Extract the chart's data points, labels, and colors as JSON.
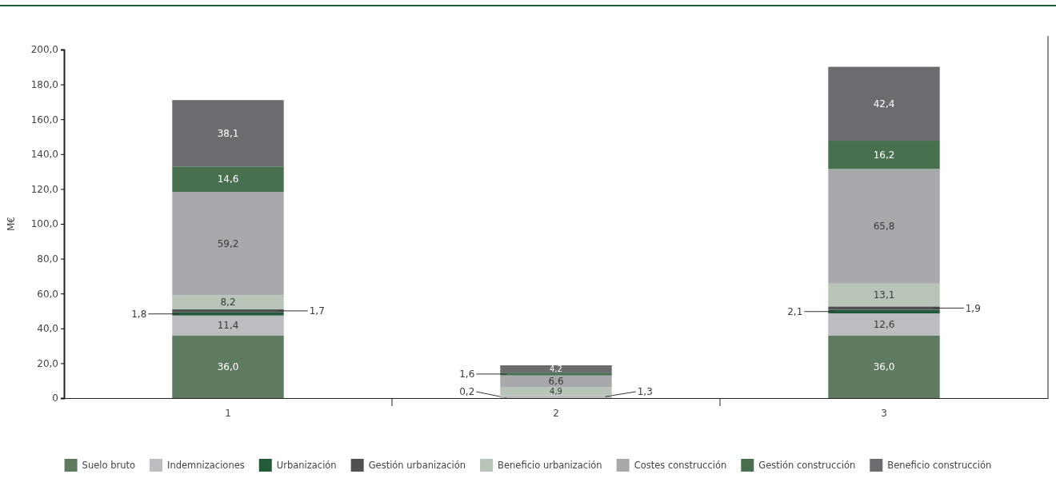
{
  "chart_data": {
    "type": "bar",
    "stacked": true,
    "ylabel": "M€",
    "categories": [
      "1",
      "2",
      "3"
    ],
    "ylim": [
      0,
      200
    ],
    "yticks": [
      0,
      {
        "value": 20,
        "label": "20,0"
      },
      {
        "value": 40,
        "label": "40,0"
      },
      {
        "value": 60,
        "label": "60,0"
      },
      {
        "value": 80,
        "label": "80,0"
      },
      {
        "value": 100,
        "label": "100,0"
      },
      {
        "value": 120,
        "label": "120,0"
      },
      {
        "value": 140,
        "label": "140,0"
      },
      {
        "value": 160,
        "label": "160,0"
      },
      {
        "value": 180,
        "label": "180,0"
      },
      {
        "value": 200,
        "label": "200,0"
      }
    ],
    "grid": false,
    "legend": "bottom",
    "series": [
      {
        "name": "Suelo bruto",
        "color": "#5e7b62",
        "values": [
          36.0,
          0.2,
          36.0
        ],
        "value_labels": [
          "36,0",
          "0,2",
          "36,0"
        ]
      },
      {
        "name": "Indemnizaciones",
        "color": "#bdbdc1",
        "values": [
          11.4,
          1.3,
          12.6
        ],
        "value_labels": [
          "11,4",
          "1,3",
          "12,6"
        ]
      },
      {
        "name": "Urbanización",
        "color": "#235a3a",
        "values": [
          1.8,
          null,
          2.1
        ],
        "value_labels": [
          "1,8",
          null,
          "2,1"
        ]
      },
      {
        "name": "Gestión urbanización",
        "color": "#505053",
        "values": [
          1.7,
          null,
          1.9
        ],
        "value_labels": [
          "1,7",
          null,
          "1,9"
        ]
      },
      {
        "name": "Beneficio urbanización",
        "color": "#b9c4b9",
        "values": [
          8.2,
          4.9,
          13.1
        ],
        "value_labels": [
          "8,2",
          "4,9",
          "13,1"
        ]
      },
      {
        "name": "Costes construcción",
        "color": "#a8a9ad",
        "values": [
          59.2,
          6.6,
          65.8
        ],
        "value_labels": [
          "59,2",
          "6,6",
          "65,8"
        ]
      },
      {
        "name": "Gestión construcción",
        "color": "#48704f",
        "values": [
          14.6,
          1.6,
          16.2
        ],
        "value_labels": [
          "14,6",
          "1,6",
          "16,2"
        ]
      },
      {
        "name": "Beneficio construcción",
        "color": "#6b6b70",
        "values": [
          38.1,
          4.2,
          42.4
        ],
        "value_labels": [
          "38,1",
          "4,2",
          "42,4"
        ]
      }
    ]
  }
}
